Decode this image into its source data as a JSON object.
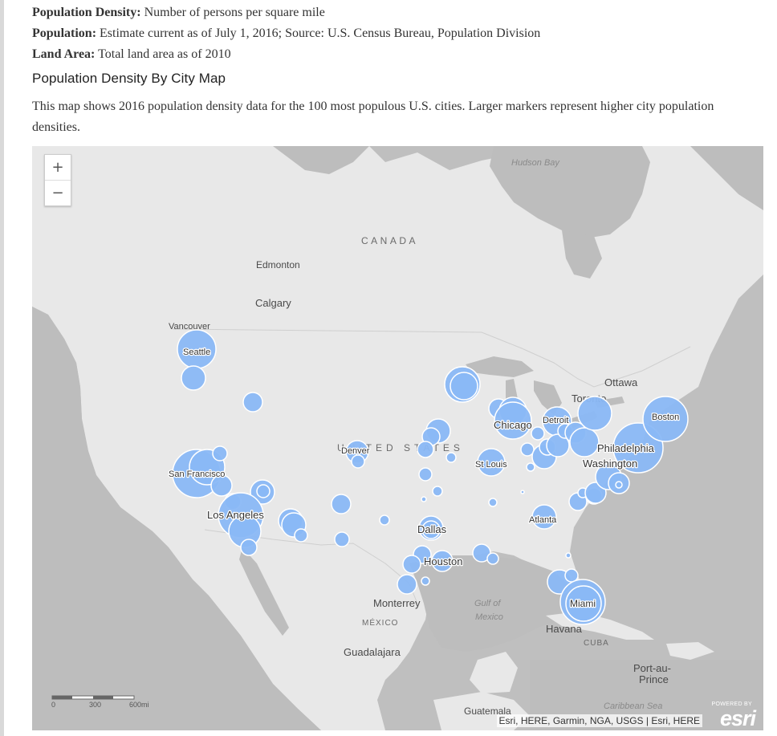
{
  "definitions": [
    {
      "term": "Population Density:",
      "text": " Number of persons per square mile"
    },
    {
      "term": "Population:",
      "text": " Estimate current as of July 1, 2016; Source: U.S. Census Bureau, Population Division"
    },
    {
      "term": "Land Area:",
      "text": " Total land area as of 2010"
    }
  ],
  "section_title": "Population Density By City Map",
  "section_description": "This map shows 2016 population density data for the 100 most populous U.S. cities. Larger markers represent higher city population densities.",
  "map": {
    "zoom_in_label": "+",
    "zoom_out_label": "−",
    "place_labels": {
      "hudson_bay": "Hudson Bay",
      "canada": "CANADA",
      "edmonton": "Edmonton",
      "calgary": "Calgary",
      "vancouver": "Vancouver",
      "ottawa": "Ottawa",
      "toronto": "Toronto",
      "united_states": "UNITED STATES",
      "mexico": "MÉXICO",
      "monterrey": "Monterrey",
      "guadalajara": "Guadalajara",
      "gulf_of_mexico_1": "Gulf of",
      "gulf_of_mexico_2": "Mexico",
      "havana": "Havana",
      "cuba": "CUBA",
      "port_au_prince_1": "Port-au-",
      "port_au_prince_2": "Prince",
      "caribbean_sea": "Caribbean Sea",
      "guatemala": "Guatemala"
    },
    "city_labels": {
      "seattle": "Seattle",
      "san_francisco": "San Francisco",
      "los_angeles": "Los Angeles",
      "denver": "Denver",
      "dallas": "Dallas",
      "houston": "Houston",
      "st_louis": "St Louis",
      "chicago": "Chicago",
      "detroit": "Detroit",
      "atlanta": "Atlanta",
      "miami": "Miami",
      "washington": "Washington",
      "philadelphia": "Philadelphia",
      "boston": "Boston"
    },
    "scale_bar": {
      "label_0": "0",
      "label_mid": "300",
      "label_end": "600mi"
    },
    "attribution": "Esri, HERE, Garmin, NGA, USGS | Esri, HERE",
    "esri_powered": "POWERED BY",
    "esri_logo": "esri",
    "colors": {
      "marker_fill": "#8ab8f5",
      "marker_stroke": "#ffffff",
      "land": "#e8e8e8",
      "water": "#bdbdbd"
    }
  }
}
